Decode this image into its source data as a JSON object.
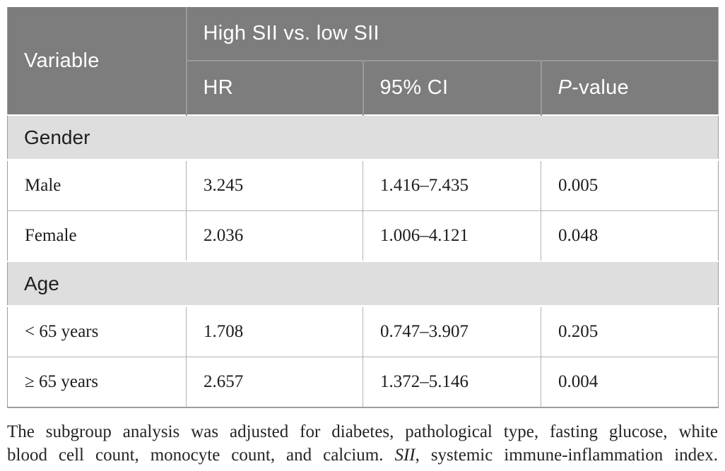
{
  "table": {
    "header": {
      "variable": "Variable",
      "group": "High SII vs. low SII",
      "hr": "HR",
      "ci": "95% CI",
      "p_italic": "P",
      "p_rest": "-value"
    },
    "sections": [
      {
        "label": "Gender",
        "rows": [
          {
            "variable": "Male",
            "hr": "3.245",
            "ci": "1.416–7.435",
            "p": "0.005"
          },
          {
            "variable": "Female",
            "hr": "2.036",
            "ci": "1.006–4.121",
            "p": "0.048"
          }
        ]
      },
      {
        "label": "Age",
        "rows": [
          {
            "variable": "< 65 years",
            "hr": "1.708",
            "ci": "0.747–3.907",
            "p": "0.205"
          },
          {
            "variable": "≥ 65 years",
            "hr": "2.657",
            "ci": "1.372–5.146",
            "p": "0.004"
          }
        ]
      }
    ]
  },
  "footnote": {
    "line1": "The subgroup analysis was adjusted for diabetes, pathological type, fasting glucose, white",
    "line2_pre": "blood cell count, monocyte count, and calcium. ",
    "line2_abbr": "SII",
    "line2_post": ", systemic immune-inflammation index."
  },
  "colors": {
    "header_bg": "#7d7d7d",
    "header_divider": "#9a9a9a",
    "header_text": "#ffffff",
    "section_bg": "#dedede",
    "body_border": "#b2b2b2",
    "outer_border": "#9c9c9c",
    "body_text": "#1c1c1c"
  },
  "chart_data": {
    "type": "table",
    "title": "High SII vs. low SII subgroup analysis",
    "columns": [
      "Variable",
      "HR",
      "95% CI",
      "P-value"
    ],
    "rows": [
      [
        "Gender",
        "",
        "",
        ""
      ],
      [
        "Male",
        3.245,
        "1.416–7.435",
        0.005
      ],
      [
        "Female",
        2.036,
        "1.006–4.121",
        0.048
      ],
      [
        "Age",
        "",
        "",
        ""
      ],
      [
        "< 65 years",
        1.708,
        "0.747–3.907",
        0.205
      ],
      [
        "≥ 65 years",
        2.657,
        "1.372–5.146",
        0.004
      ]
    ]
  }
}
